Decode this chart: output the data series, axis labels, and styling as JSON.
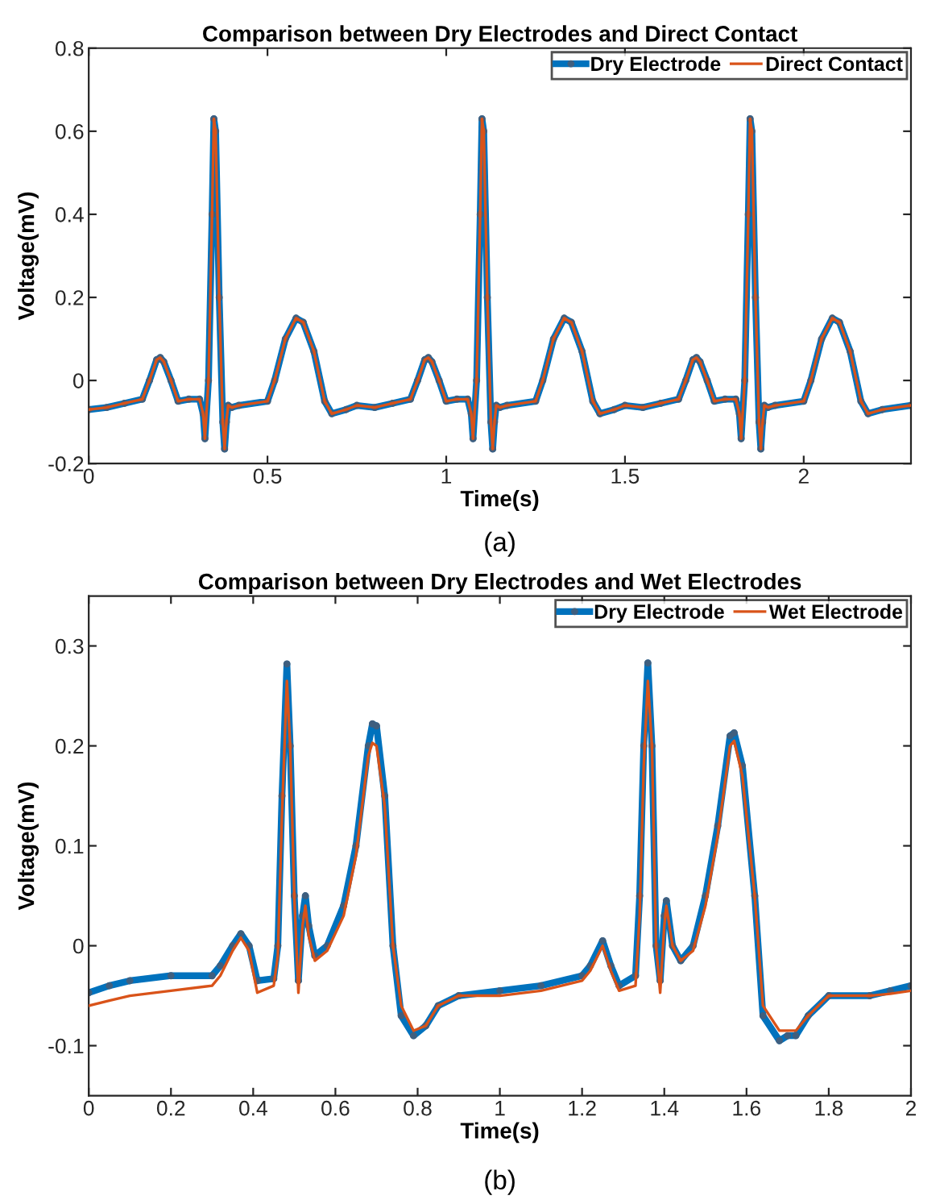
{
  "chart_data": [
    {
      "type": "line",
      "title": "Comparison between Dry Electrodes and Direct Contact",
      "xlabel": "Time(s)",
      "ylabel": "Voltage(mV)",
      "annotations": [
        "(a)"
      ],
      "xlim": [
        0,
        2.3
      ],
      "xticks": [
        0,
        0.5,
        1,
        1.5,
        2
      ],
      "ylim": [
        -0.2,
        0.8
      ],
      "yticks": [
        -0.2,
        0,
        0.2,
        0.4,
        0.6,
        0.8
      ],
      "grid": false,
      "legend": "top right",
      "series": [
        {
          "name": "Dry Electrode",
          "color": "#0072bd",
          "marker": "circle",
          "x": [
            0,
            0.05,
            0.1,
            0.15,
            0.17,
            0.19,
            0.2,
            0.21,
            0.23,
            0.25,
            0.28,
            0.31,
            0.32,
            0.325,
            0.335,
            0.345,
            0.35,
            0.355,
            0.365,
            0.375,
            0.38,
            0.385,
            0.39,
            0.4,
            0.42,
            0.5,
            0.52,
            0.55,
            0.58,
            0.6,
            0.63,
            0.66,
            0.68,
            0.72,
            0.75,
            0.8,
            0.85,
            0.9,
            0.92,
            0.94,
            0.95,
            0.96,
            0.98,
            1.0,
            1.03,
            1.06,
            1.07,
            1.075,
            1.085,
            1.095,
            1.1,
            1.105,
            1.115,
            1.125,
            1.13,
            1.135,
            1.14,
            1.15,
            1.17,
            1.25,
            1.27,
            1.3,
            1.33,
            1.35,
            1.38,
            1.41,
            1.43,
            1.47,
            1.5,
            1.55,
            1.6,
            1.65,
            1.67,
            1.69,
            1.7,
            1.71,
            1.73,
            1.75,
            1.78,
            1.81,
            1.82,
            1.825,
            1.835,
            1.845,
            1.85,
            1.855,
            1.865,
            1.875,
            1.88,
            1.885,
            1.89,
            1.9,
            1.92,
            2.0,
            2.02,
            2.05,
            2.08,
            2.1,
            2.13,
            2.16,
            2.18,
            2.22,
            2.3
          ],
          "values": [
            -0.07,
            -0.065,
            -0.055,
            -0.045,
            0.0,
            0.05,
            0.055,
            0.045,
            0.0,
            -0.05,
            -0.045,
            -0.045,
            -0.08,
            -0.14,
            0.0,
            0.4,
            0.63,
            0.6,
            0.2,
            -0.1,
            -0.165,
            -0.1,
            -0.06,
            -0.065,
            -0.06,
            -0.05,
            0.0,
            0.1,
            0.15,
            0.14,
            0.07,
            -0.05,
            -0.08,
            -0.07,
            -0.06,
            -0.065,
            -0.055,
            -0.045,
            0.0,
            0.05,
            0.055,
            0.045,
            0.0,
            -0.05,
            -0.045,
            -0.045,
            -0.08,
            -0.14,
            0.0,
            0.4,
            0.63,
            0.6,
            0.2,
            -0.1,
            -0.165,
            -0.1,
            -0.06,
            -0.065,
            -0.06,
            -0.05,
            0.0,
            0.1,
            0.15,
            0.14,
            0.07,
            -0.05,
            -0.08,
            -0.07,
            -0.06,
            -0.065,
            -0.055,
            -0.045,
            0.0,
            0.05,
            0.055,
            0.045,
            0.0,
            -0.05,
            -0.045,
            -0.045,
            -0.08,
            -0.14,
            0.0,
            0.4,
            0.63,
            0.6,
            0.2,
            -0.1,
            -0.165,
            -0.1,
            -0.06,
            -0.065,
            -0.06,
            -0.05,
            0.0,
            0.1,
            0.15,
            0.14,
            0.07,
            -0.05,
            -0.08,
            -0.07,
            -0.06
          ]
        },
        {
          "name": "Direct Contact",
          "color": "#d95319",
          "x": [
            0,
            0.05,
            0.1,
            0.15,
            0.17,
            0.19,
            0.2,
            0.21,
            0.23,
            0.25,
            0.28,
            0.31,
            0.32,
            0.325,
            0.335,
            0.345,
            0.35,
            0.355,
            0.365,
            0.375,
            0.38,
            0.385,
            0.39,
            0.4,
            0.42,
            0.5,
            0.52,
            0.55,
            0.58,
            0.6,
            0.63,
            0.66,
            0.68,
            0.72,
            0.75,
            0.8,
            0.85,
            0.9,
            0.92,
            0.94,
            0.95,
            0.96,
            0.98,
            1.0,
            1.03,
            1.06,
            1.07,
            1.075,
            1.085,
            1.095,
            1.1,
            1.105,
            1.115,
            1.125,
            1.13,
            1.135,
            1.14,
            1.15,
            1.17,
            1.25,
            1.27,
            1.3,
            1.33,
            1.35,
            1.38,
            1.41,
            1.43,
            1.47,
            1.5,
            1.55,
            1.6,
            1.65,
            1.67,
            1.69,
            1.7,
            1.71,
            1.73,
            1.75,
            1.78,
            1.81,
            1.82,
            1.825,
            1.835,
            1.845,
            1.85,
            1.855,
            1.865,
            1.875,
            1.88,
            1.885,
            1.89,
            1.9,
            1.92,
            2.0,
            2.02,
            2.05,
            2.08,
            2.1,
            2.13,
            2.16,
            2.18,
            2.22,
            2.3
          ],
          "values": [
            -0.07,
            -0.065,
            -0.055,
            -0.045,
            0.0,
            0.05,
            0.055,
            0.045,
            0.0,
            -0.05,
            -0.045,
            -0.045,
            -0.08,
            -0.14,
            0.0,
            0.4,
            0.63,
            0.6,
            0.2,
            -0.1,
            -0.165,
            -0.1,
            -0.06,
            -0.065,
            -0.06,
            -0.05,
            0.0,
            0.1,
            0.15,
            0.14,
            0.07,
            -0.05,
            -0.08,
            -0.07,
            -0.06,
            -0.065,
            -0.055,
            -0.045,
            0.0,
            0.05,
            0.055,
            0.045,
            0.0,
            -0.05,
            -0.045,
            -0.045,
            -0.08,
            -0.14,
            0.0,
            0.4,
            0.63,
            0.6,
            0.2,
            -0.1,
            -0.165,
            -0.1,
            -0.06,
            -0.065,
            -0.06,
            -0.05,
            0.0,
            0.1,
            0.15,
            0.14,
            0.07,
            -0.05,
            -0.08,
            -0.07,
            -0.06,
            -0.065,
            -0.055,
            -0.045,
            0.0,
            0.05,
            0.055,
            0.045,
            0.0,
            -0.05,
            -0.045,
            -0.045,
            -0.08,
            -0.14,
            0.0,
            0.4,
            0.63,
            0.6,
            0.2,
            -0.1,
            -0.165,
            -0.1,
            -0.06,
            -0.065,
            -0.06,
            -0.05,
            0.0,
            0.1,
            0.15,
            0.14,
            0.07,
            -0.05,
            -0.08,
            -0.07,
            -0.06
          ]
        }
      ]
    },
    {
      "type": "line",
      "title": "Comparison between Dry Electrodes and Wet Electrodes",
      "xlabel": "Time(s)",
      "ylabel": "Voltage(mV)",
      "annotations": [
        "(b)"
      ],
      "xlim": [
        0,
        2
      ],
      "xticks": [
        0,
        0.2,
        0.4,
        0.6,
        0.8,
        1,
        1.2,
        1.4,
        1.6,
        1.8,
        2
      ],
      "ylim": [
        -0.15,
        0.35
      ],
      "yticks": [
        -0.1,
        0,
        0.1,
        0.2,
        0.3
      ],
      "grid": false,
      "legend": "top right",
      "series": [
        {
          "name": "Dry Electrode",
          "color": "#0072bd",
          "marker": "circle",
          "x": [
            0,
            0.05,
            0.1,
            0.2,
            0.3,
            0.32,
            0.35,
            0.37,
            0.39,
            0.41,
            0.45,
            0.46,
            0.47,
            0.482,
            0.49,
            0.5,
            0.51,
            0.52,
            0.527,
            0.535,
            0.55,
            0.58,
            0.62,
            0.65,
            0.68,
            0.69,
            0.7,
            0.72,
            0.74,
            0.76,
            0.79,
            0.82,
            0.85,
            0.9,
            1.0,
            1.1,
            1.2,
            1.22,
            1.25,
            1.27,
            1.29,
            1.33,
            1.34,
            1.35,
            1.36,
            1.37,
            1.38,
            1.39,
            1.4,
            1.405,
            1.42,
            1.44,
            1.47,
            1.5,
            1.53,
            1.56,
            1.57,
            1.59,
            1.62,
            1.64,
            1.68,
            1.7,
            1.72,
            1.75,
            1.8,
            1.9,
            1.95,
            2.0
          ],
          "values": [
            -0.047,
            -0.04,
            -0.035,
            -0.03,
            -0.03,
            -0.02,
            0.0,
            0.012,
            0.0,
            -0.035,
            -0.033,
            0.0,
            0.15,
            0.282,
            0.2,
            0.05,
            -0.035,
            0.03,
            0.05,
            0.02,
            -0.01,
            0.0,
            0.04,
            0.1,
            0.2,
            0.222,
            0.22,
            0.15,
            0.0,
            -0.07,
            -0.09,
            -0.08,
            -0.06,
            -0.05,
            -0.045,
            -0.04,
            -0.03,
            -0.02,
            0.005,
            -0.02,
            -0.04,
            -0.03,
            0.05,
            0.2,
            0.283,
            0.2,
            0.0,
            -0.035,
            0.03,
            0.045,
            0.0,
            -0.015,
            0.0,
            0.05,
            0.12,
            0.21,
            0.213,
            0.18,
            0.05,
            -0.07,
            -0.095,
            -0.09,
            -0.09,
            -0.07,
            -0.05,
            -0.05,
            -0.045,
            -0.04
          ]
        },
        {
          "name": "Wet Electrode",
          "color": "#d95319",
          "x": [
            0,
            0.05,
            0.1,
            0.2,
            0.3,
            0.32,
            0.35,
            0.37,
            0.39,
            0.41,
            0.45,
            0.46,
            0.47,
            0.482,
            0.49,
            0.5,
            0.51,
            0.52,
            0.527,
            0.535,
            0.55,
            0.58,
            0.62,
            0.65,
            0.68,
            0.69,
            0.7,
            0.72,
            0.74,
            0.76,
            0.79,
            0.82,
            0.85,
            0.9,
            1.0,
            1.1,
            1.2,
            1.22,
            1.25,
            1.27,
            1.29,
            1.33,
            1.34,
            1.35,
            1.36,
            1.37,
            1.38,
            1.39,
            1.4,
            1.405,
            1.42,
            1.44,
            1.47,
            1.5,
            1.53,
            1.56,
            1.57,
            1.59,
            1.62,
            1.64,
            1.68,
            1.7,
            1.72,
            1.75,
            1.8,
            1.9,
            1.95,
            2.0
          ],
          "values": [
            -0.06,
            -0.055,
            -0.05,
            -0.045,
            -0.04,
            -0.03,
            -0.005,
            0.008,
            -0.005,
            -0.047,
            -0.04,
            -0.01,
            0.13,
            0.265,
            0.2,
            0.05,
            -0.047,
            0.02,
            0.04,
            0.01,
            -0.015,
            -0.005,
            0.03,
            0.09,
            0.19,
            0.203,
            0.2,
            0.14,
            0.0,
            -0.06,
            -0.085,
            -0.08,
            -0.06,
            -0.05,
            -0.05,
            -0.045,
            -0.035,
            -0.025,
            0.0,
            -0.025,
            -0.045,
            -0.04,
            0.03,
            0.18,
            0.265,
            0.2,
            0.0,
            -0.047,
            0.02,
            0.04,
            0.0,
            -0.015,
            -0.005,
            0.04,
            0.11,
            0.2,
            0.205,
            0.17,
            0.05,
            -0.06,
            -0.085,
            -0.085,
            -0.085,
            -0.07,
            -0.05,
            -0.05,
            -0.048,
            -0.045
          ]
        }
      ]
    }
  ]
}
